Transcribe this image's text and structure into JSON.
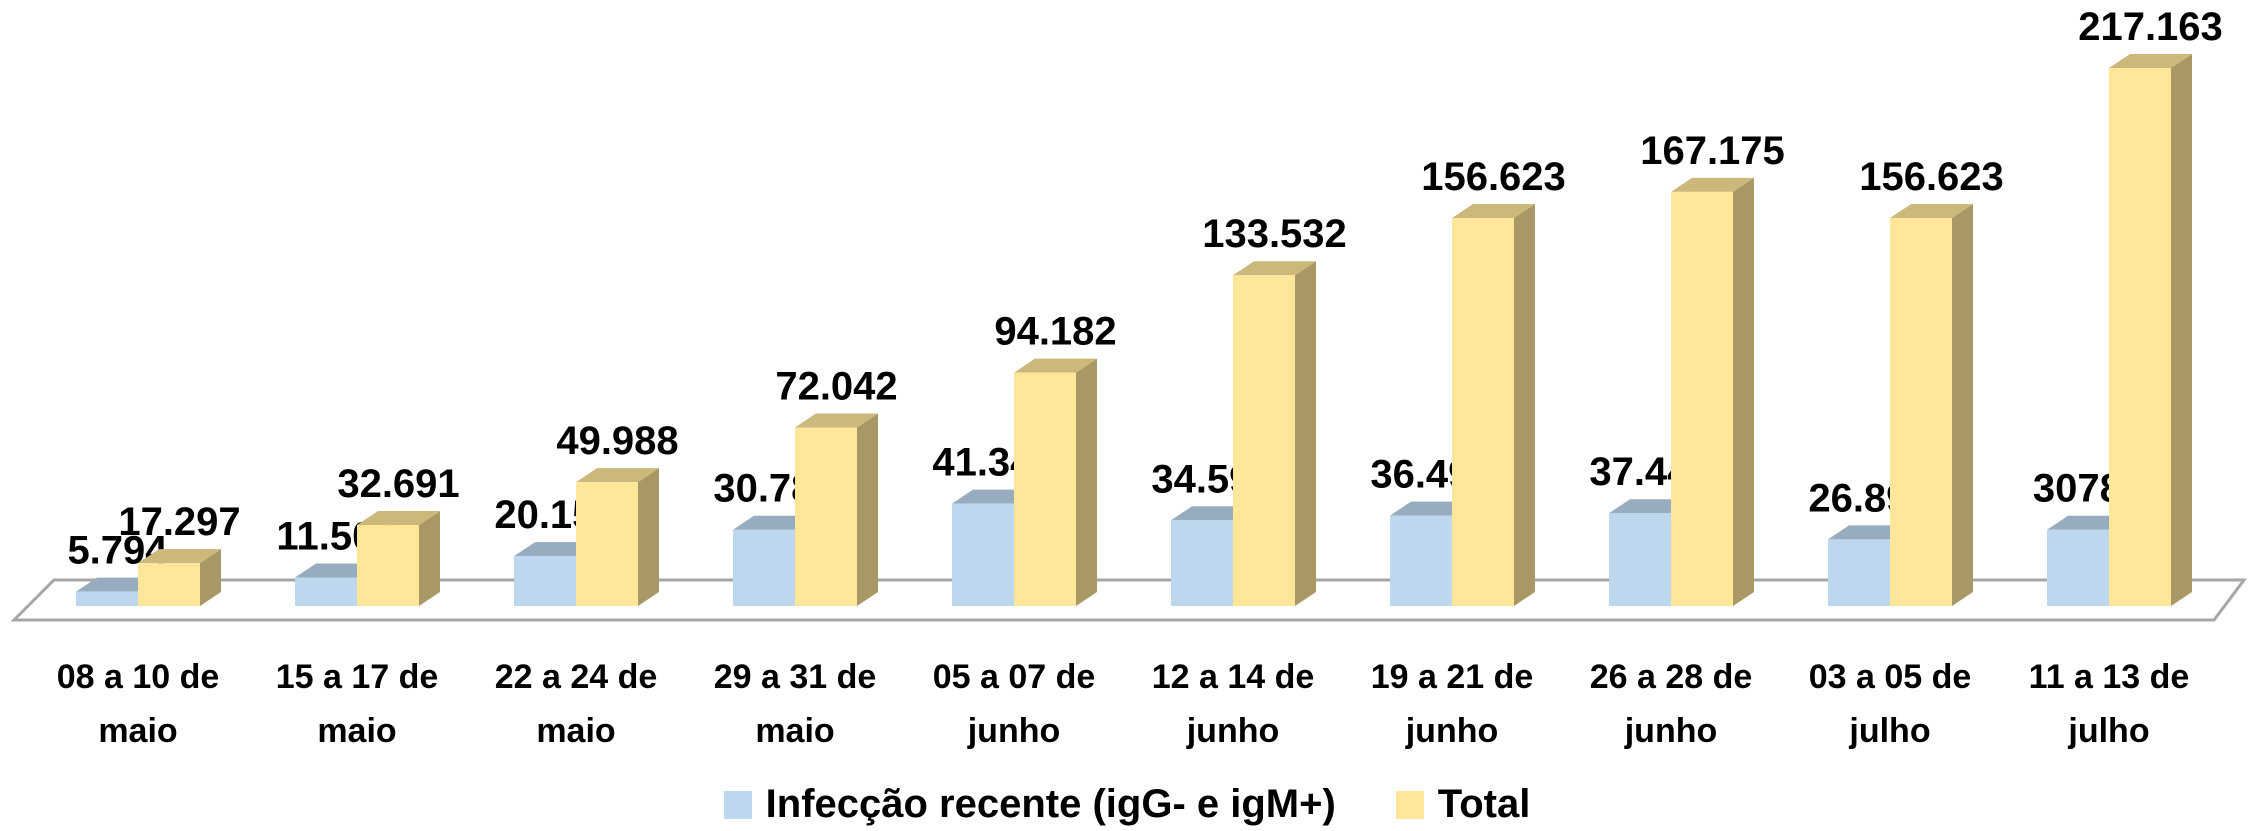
{
  "chart_data": {
    "type": "bar3d",
    "categories": [
      "08 a 10 de maio",
      "15 a 17 de maio",
      "22 a 24 de maio",
      "29 a 31 de maio",
      "05 a 07 de junho",
      "12 a 14 de junho",
      "19 a 21 de junho",
      "26 a 28 de junho",
      "03 a 05 de julho",
      "11 a 13 de julho"
    ],
    "series": [
      {
        "name": "Infecção recente (igG- e igM+)",
        "color": "#bdd7ee",
        "values": [
          5794,
          11502,
          20151,
          30788,
          41340,
          34594,
          36496,
          37448,
          26897,
          30788
        ],
        "value_labels": [
          "5.794",
          "11.502",
          "20.151",
          "30.788",
          "41.340",
          "34.594",
          "36.496",
          "37.448",
          "26.897",
          "30788"
        ]
      },
      {
        "name": "Total",
        "color": "#ffe699",
        "values": [
          17297,
          32691,
          49988,
          72042,
          94182,
          133532,
          156623,
          167175,
          156623,
          217163
        ],
        "value_labels": [
          "17.297",
          "32.691",
          "49.988",
          "72.042",
          "94.182",
          "133.532",
          "156.623",
          "167.175",
          "156.623",
          "217.163"
        ]
      }
    ]
  }
}
